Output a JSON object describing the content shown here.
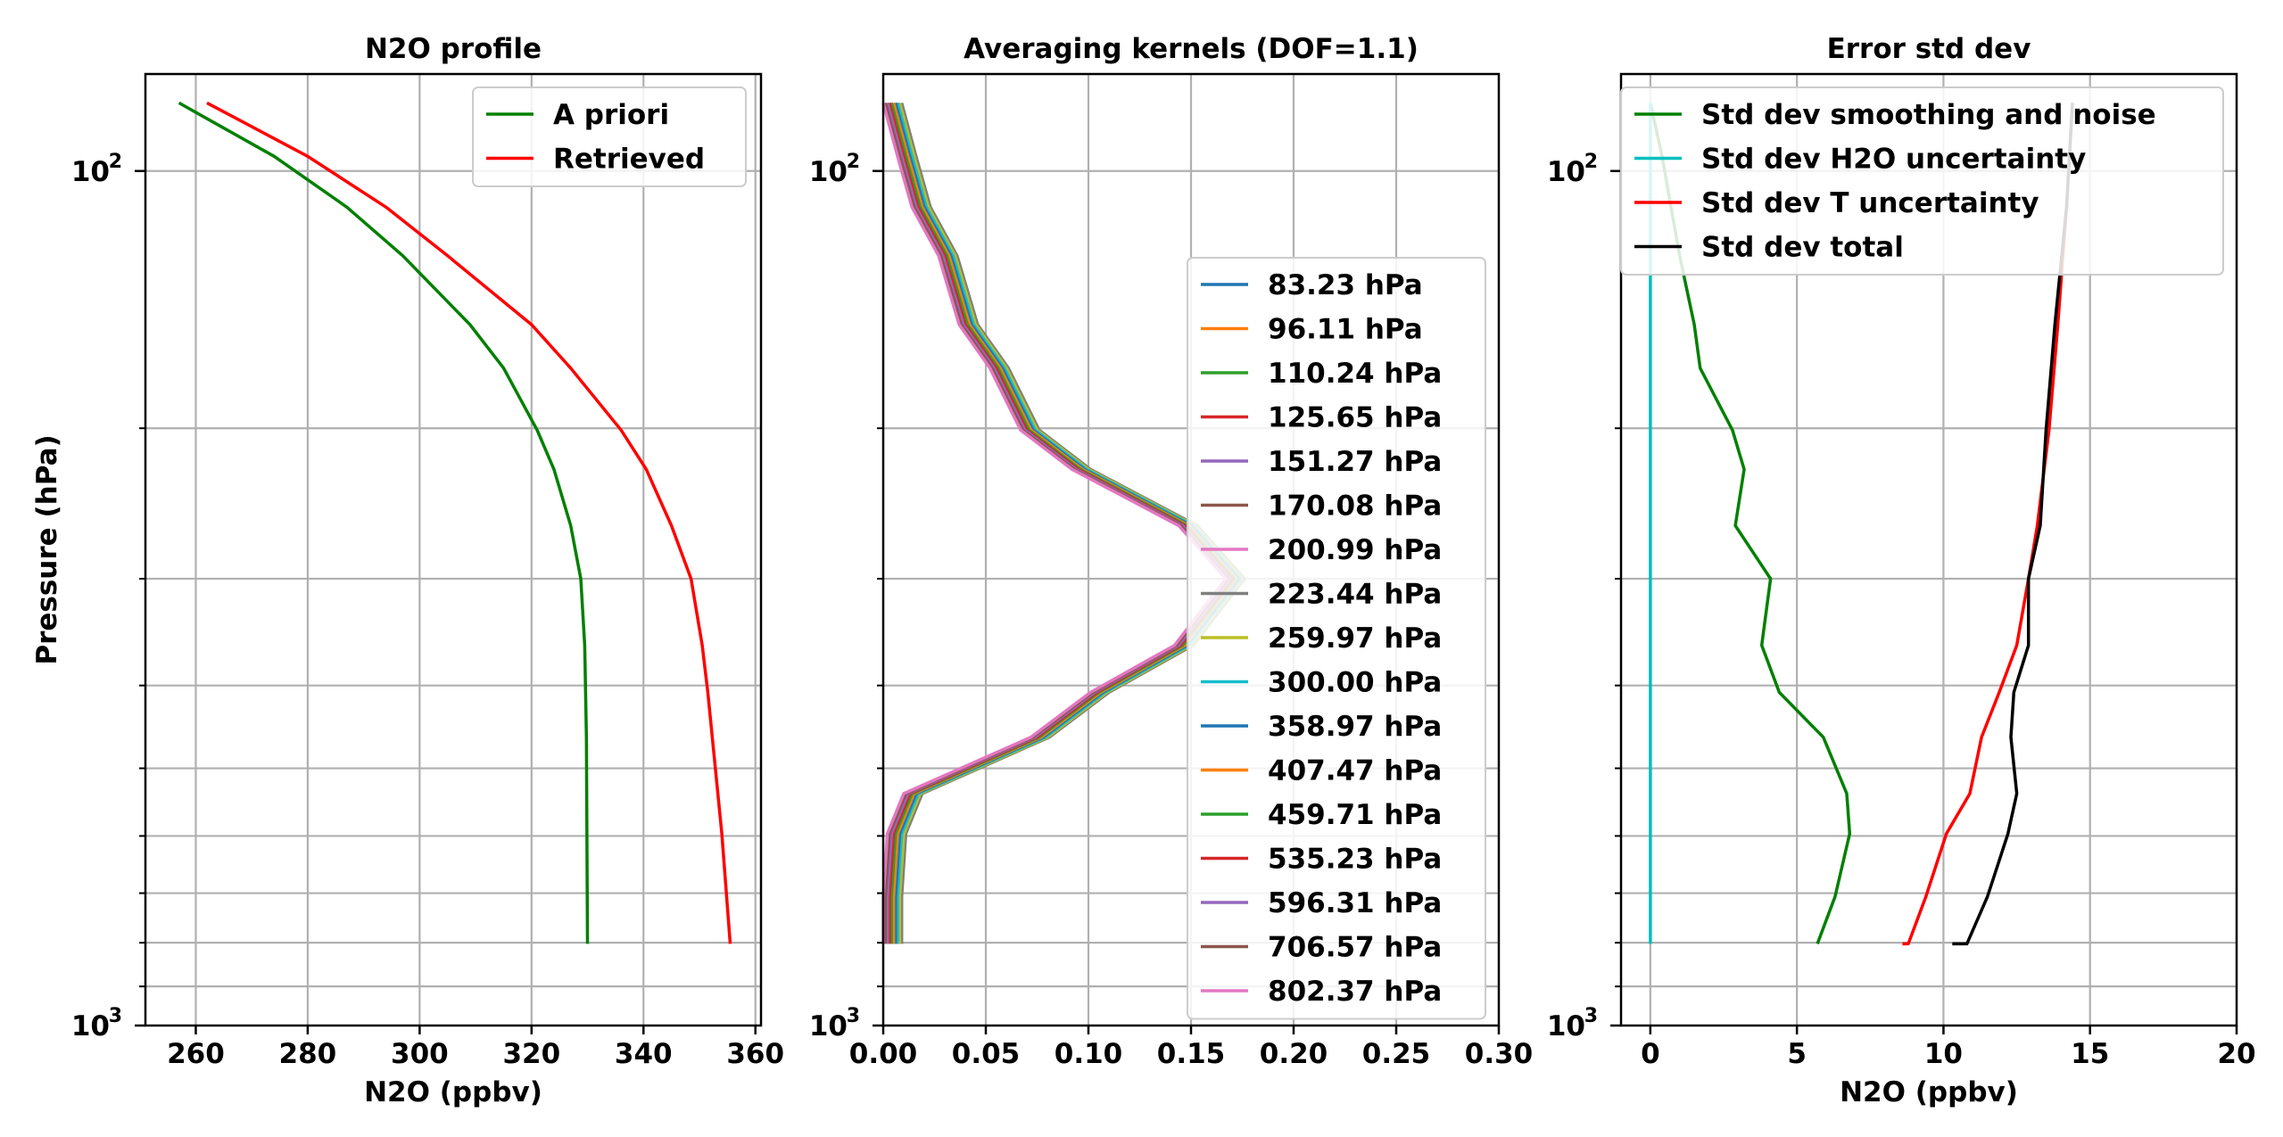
{
  "chart_data": [
    {
      "type": "line",
      "title": "N2O profile",
      "xlabel": "N2O (ppbv)",
      "ylabel": "Pressure (hPa)",
      "xlim": [
        251,
        361
      ],
      "ylim": [
        1000,
        77
      ],
      "yscale": "log",
      "xticks": [
        260,
        280,
        300,
        320,
        340,
        360
      ],
      "xtick_labels": [
        "260",
        "280",
        "300",
        "320",
        "340",
        "360"
      ],
      "legend_position": "upper right",
      "grid": true,
      "series": [
        {
          "name": "A priori",
          "color": "#008000",
          "x": [
            257,
            274,
            287,
            297,
            309,
            315,
            321,
            324,
            327,
            328.8,
            329.5,
            329.8,
            330
          ],
          "y": [
            83.23,
            96.11,
            110.24,
            125.65,
            151.27,
            170.08,
            200.99,
            223.44,
            259.97,
            300.0,
            358.97,
            459.71,
            802.37
          ]
        },
        {
          "name": "Retrieved",
          "color": "#ff0000",
          "x": [
            262,
            280,
            294,
            305,
            320,
            327,
            336,
            340.5,
            345,
            348.5,
            350.5,
            351.5,
            354,
            355.5
          ],
          "y": [
            83.23,
            96.11,
            110.24,
            125.65,
            151.27,
            170.08,
            200.99,
            223.44,
            259.97,
            300.0,
            358.97,
            407.47,
            596.31,
            802.37
          ]
        }
      ]
    },
    {
      "type": "line",
      "title": "Averaging kernels (DOF=1.1)",
      "xlim": [
        0.0,
        0.3
      ],
      "ylim": [
        1000,
        77
      ],
      "yscale": "log",
      "xticks": [
        0.0,
        0.05,
        0.1,
        0.15,
        0.2,
        0.25,
        0.3
      ],
      "xtick_labels": [
        "0.00",
        "0.05",
        "0.10",
        "0.15",
        "0.20",
        "0.25",
        "0.30"
      ],
      "legend_position": "center right",
      "grid": true,
      "pressure_levels": [
        83.23,
        96.11,
        110.24,
        125.65,
        151.27,
        170.08,
        200.99,
        223.44,
        259.97,
        300.0,
        358.97,
        407.47,
        459.71,
        535.23,
        596.31,
        706.57,
        802.37
      ],
      "base_profile": [
        0.004,
        0.011,
        0.018,
        0.031,
        0.041,
        0.056,
        0.071,
        0.096,
        0.148,
        0.171,
        0.146,
        0.105,
        0.076,
        0.014,
        0.006,
        0.004,
        0.004
      ],
      "series": [
        {
          "name": "83.23 hPa",
          "color": "#1f77b4",
          "offset": -0.002
        },
        {
          "name": "96.11 hPa",
          "color": "#ff7f0e",
          "offset": -0.001
        },
        {
          "name": "110.24 hPa",
          "color": "#2ca02c",
          "offset": 0.0
        },
        {
          "name": "125.65 hPa",
          "color": "#d62728",
          "offset": 0.001
        },
        {
          "name": "151.27 hPa",
          "color": "#9467bd",
          "offset": 0.002
        },
        {
          "name": "170.08 hPa",
          "color": "#8c564b",
          "offset": 0.003
        },
        {
          "name": "200.99 hPa",
          "color": "#e377c2",
          "offset": 0.004
        },
        {
          "name": "223.44 hPa",
          "color": "#7f7f7f",
          "offset": 0.005
        },
        {
          "name": "259.97 hPa",
          "color": "#bcbd22",
          "offset": 0.004
        },
        {
          "name": "300.00 hPa",
          "color": "#17becf",
          "offset": 0.003
        },
        {
          "name": "358.97 hPa",
          "color": "#1f77b4",
          "offset": 0.002
        },
        {
          "name": "407.47 hPa",
          "color": "#ff7f0e",
          "offset": 0.001
        },
        {
          "name": "459.71 hPa",
          "color": "#2ca02c",
          "offset": 0.0
        },
        {
          "name": "535.23 hPa",
          "color": "#d62728",
          "offset": -0.001
        },
        {
          "name": "596.31 hPa",
          "color": "#9467bd",
          "offset": -0.002
        },
        {
          "name": "706.57 hPa",
          "color": "#8c564b",
          "offset": -0.003
        },
        {
          "name": "802.37 hPa",
          "color": "#e377c2",
          "offset": -0.004
        }
      ]
    },
    {
      "type": "line",
      "title": "Error std dev",
      "xlabel": "N2O (ppbv)",
      "xlim": [
        -1,
        20
      ],
      "ylim": [
        1000,
        77
      ],
      "yscale": "log",
      "xticks": [
        0,
        5,
        10,
        15,
        20
      ],
      "xtick_labels": [
        "0",
        "5",
        "10",
        "15",
        "20"
      ],
      "legend_position": "upper right",
      "grid": true,
      "series": [
        {
          "name": "Std dev smoothing and noise",
          "color": "#008000",
          "x": [
            0,
            0.4,
            1.0,
            1.5,
            1.7,
            2.8,
            3.2,
            2.9,
            4.1,
            3.8,
            4.4,
            5.9,
            6.7,
            6.8,
            6.3,
            5.7
          ],
          "y": [
            83.23,
            96.11,
            125.65,
            151.27,
            170.08,
            200.99,
            223.44,
            259.97,
            300.0,
            358.97,
            407.47,
            459.71,
            535.23,
            596.31,
            706.57,
            802.37
          ]
        },
        {
          "name": "Std dev H2O uncertainty",
          "color": "#00bfbf",
          "x": [
            0,
            0,
            0,
            0,
            0,
            0,
            0,
            0
          ],
          "y": [
            83.23,
            125.65,
            170.08,
            223.44,
            300.0,
            407.47,
            535.23,
            802.37
          ]
        },
        {
          "name": "Std dev T uncertainty",
          "color": "#ff0000",
          "x": [
            14.4,
            14.2,
            13.9,
            13.6,
            13.2,
            12.9,
            12.5,
            11.9,
            11.3,
            10.9,
            10.1,
            9.4,
            8.8,
            8.6
          ],
          "y": [
            83.23,
            110.24,
            151.27,
            200.99,
            259.97,
            300.0,
            358.97,
            407.47,
            459.71,
            535.23,
            596.31,
            706.57,
            802.37,
            802.37
          ]
        },
        {
          "name": "Std dev total",
          "color": "#000000",
          "x": [
            14.4,
            14.2,
            13.8,
            13.5,
            13.3,
            12.9,
            12.9,
            12.4,
            12.3,
            12.5,
            12.2,
            11.5,
            10.8,
            10.3
          ],
          "y": [
            83.23,
            110.24,
            151.27,
            200.99,
            259.97,
            300.0,
            358.97,
            407.47,
            459.71,
            535.23,
            596.31,
            706.57,
            802.37,
            802.37
          ]
        }
      ]
    }
  ],
  "ytick_label_mantissa": "10",
  "ytick_exponents": [
    "2",
    "3"
  ]
}
